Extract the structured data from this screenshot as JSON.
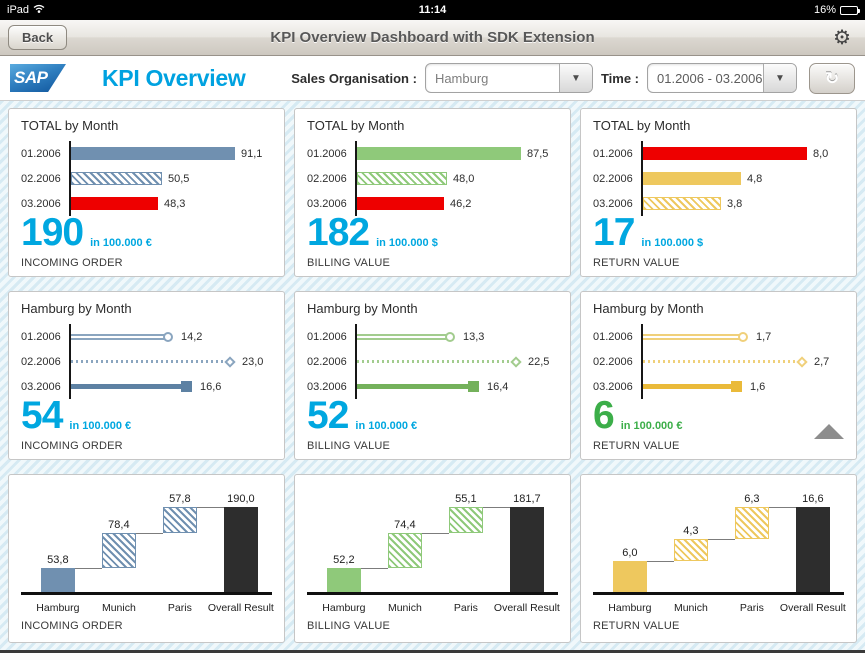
{
  "status_bar": {
    "carrier": "iPad",
    "time": "11:14",
    "battery_percent": "16%"
  },
  "nav_bar": {
    "back_label": "Back",
    "title": "KPI Overview Dashboard with SDK Extension"
  },
  "header": {
    "logo_text": "SAP",
    "page_title": "KPI Overview",
    "sales_org_label": "Sales Organisation :",
    "sales_org_value": "Hamburg",
    "time_label": "Time :",
    "time_value": "01.2006 - 03.2006"
  },
  "icons": {
    "chevron_down": "▼",
    "gear": "⚙",
    "refresh": "↻"
  },
  "palette": {
    "accent_cyan": "#00a7e0",
    "kpi_green": "#3cae49",
    "alert_red": "#ee0000",
    "steel_blue": "#7090b0",
    "green": "#8fc97a",
    "yellow": "#eec85e",
    "total_dark": "#2d2d2d"
  },
  "chart_data": [
    {
      "type": "bar",
      "title": "TOTAL by Month",
      "categories": [
        "01.2006",
        "02.2006",
        "03.2006"
      ],
      "values": [
        91.1,
        50.5,
        48.3
      ],
      "value_labels": [
        "91,1",
        "50,5",
        "48,3"
      ],
      "bar_styles": [
        "solid",
        "hatched",
        "solid"
      ],
      "bar_colors": [
        "#7090b0",
        "#7090b0",
        "#ee0000"
      ],
      "kpi": "190",
      "unit": "in 100.000 €",
      "kpi_color": "#00a7e0",
      "footer": "INCOMING ORDER"
    },
    {
      "type": "bar",
      "title": "TOTAL by Month",
      "categories": [
        "01.2006",
        "02.2006",
        "03.2006"
      ],
      "values": [
        87.5,
        48.0,
        46.2
      ],
      "value_labels": [
        "87,5",
        "48,0",
        "46,2"
      ],
      "bar_styles": [
        "solid",
        "hatched",
        "solid"
      ],
      "bar_colors": [
        "#8fc97a",
        "#8fc97a",
        "#ee0000"
      ],
      "kpi": "182",
      "unit": "in 100.000 $",
      "kpi_color": "#00a7e0",
      "footer": "BILLING VALUE"
    },
    {
      "type": "bar",
      "title": "TOTAL by Month",
      "categories": [
        "01.2006",
        "02.2006",
        "03.2006"
      ],
      "values": [
        8.0,
        4.8,
        3.8
      ],
      "value_labels": [
        "8,0",
        "4,8",
        "3,8"
      ],
      "bar_styles": [
        "solid",
        "solid",
        "hatched"
      ],
      "bar_colors": [
        "#ee0000",
        "#eec85e",
        "#eec85e"
      ],
      "kpi": "17",
      "unit": "in 100.000 $",
      "kpi_color": "#00a7e0",
      "footer": "RETURN VALUE"
    },
    {
      "type": "lollipop",
      "title": "Hamburg by Month",
      "categories": [
        "01.2006",
        "02.2006",
        "03.2006"
      ],
      "values": [
        14.2,
        23.0,
        16.6
      ],
      "value_labels": [
        "14,2",
        "23,0",
        "16,6"
      ],
      "line_styles": [
        "double",
        "dotted",
        "solid"
      ],
      "markers": [
        "circle",
        "diamond",
        "square"
      ],
      "light_color": "#8aa5bf",
      "strong_color": "#5d81a3",
      "kpi": "54",
      "unit": "in 100.000 €",
      "kpi_color": "#00a7e0",
      "footer": "INCOMING ORDER"
    },
    {
      "type": "lollipop",
      "title": "Hamburg by Month",
      "categories": [
        "01.2006",
        "02.2006",
        "03.2006"
      ],
      "values": [
        13.3,
        22.5,
        16.4
      ],
      "value_labels": [
        "13,3",
        "22,5",
        "16,4"
      ],
      "line_styles": [
        "double",
        "dotted",
        "solid"
      ],
      "markers": [
        "circle",
        "diamond",
        "square"
      ],
      "light_color": "#a2cc8e",
      "strong_color": "#74b15b",
      "kpi": "52",
      "unit": "in 100.000 €",
      "kpi_color": "#00a7e0",
      "footer": "BILLING VALUE"
    },
    {
      "type": "lollipop",
      "title": "Hamburg by Month",
      "categories": [
        "01.2006",
        "02.2006",
        "03.2006"
      ],
      "values": [
        1.7,
        2.7,
        1.6
      ],
      "value_labels": [
        "1,7",
        "2,7",
        "1,6"
      ],
      "line_styles": [
        "double",
        "dotted",
        "solid"
      ],
      "markers": [
        "circle",
        "diamond",
        "square"
      ],
      "light_color": "#f0d07a",
      "strong_color": "#eaba3a",
      "kpi": "6",
      "unit": "in 100.000 €",
      "kpi_color": "#3cae49",
      "footer": "RETURN VALUE",
      "trend": "up"
    },
    {
      "type": "waterfall",
      "categories": [
        "Hamburg",
        "Munich",
        "Paris",
        "Overall Result"
      ],
      "values": [
        53.8,
        78.4,
        57.8,
        190.0
      ],
      "value_labels": [
        "53,8",
        "78,4",
        "57,8",
        "190,0"
      ],
      "bar_styles": [
        "solid",
        "hatched",
        "hatched",
        "total"
      ],
      "color": "#7090b0",
      "footer": "INCOMING ORDER"
    },
    {
      "type": "waterfall",
      "categories": [
        "Hamburg",
        "Munich",
        "Paris",
        "Overall Result"
      ],
      "values": [
        52.2,
        74.4,
        55.1,
        181.7
      ],
      "value_labels": [
        "52,2",
        "74,4",
        "55,1",
        "181,7"
      ],
      "bar_styles": [
        "solid",
        "hatched",
        "hatched",
        "total"
      ],
      "color": "#8fc97a",
      "footer": "BILLING VALUE"
    },
    {
      "type": "waterfall",
      "categories": [
        "Hamburg",
        "Munich",
        "Paris",
        "Overall Result"
      ],
      "values": [
        6.0,
        4.3,
        6.3,
        16.6
      ],
      "value_labels": [
        "6,0",
        "4,3",
        "6,3",
        "16,6"
      ],
      "bar_styles": [
        "solid",
        "hatched",
        "hatched",
        "total"
      ],
      "color": "#eec85e",
      "footer": "RETURN VALUE"
    }
  ]
}
